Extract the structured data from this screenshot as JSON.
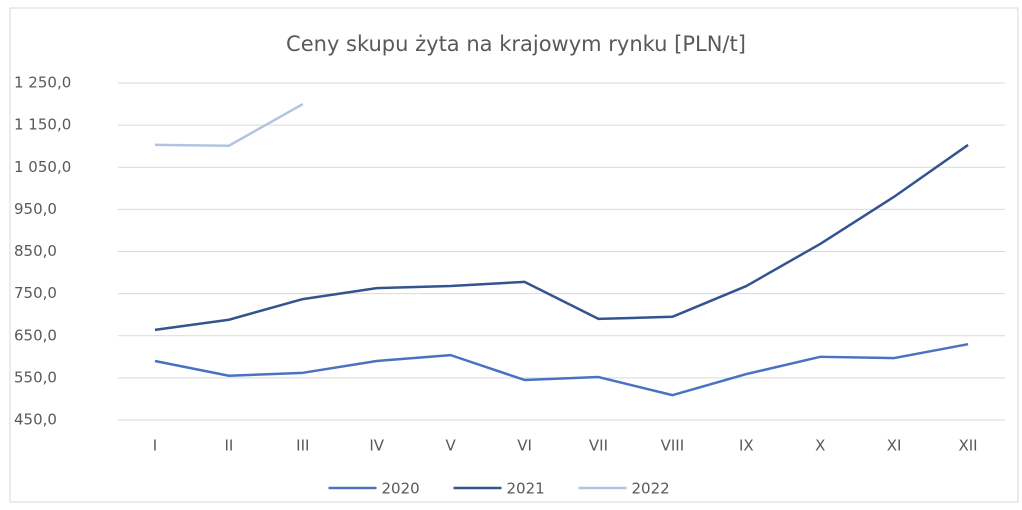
{
  "chart_data": {
    "type": "line",
    "title": "Ceny skupu żyta na krajowym rynku [PLN/t]",
    "categories": [
      "I",
      "II",
      "III",
      "IV",
      "V",
      "VI",
      "VII",
      "VIII",
      "IX",
      "X",
      "XI",
      "XII"
    ],
    "series": [
      {
        "name": "2020",
        "color": "#4a72c0",
        "values": [
          590,
          555,
          562,
          590,
          604,
          545,
          552,
          509,
          559,
          600,
          597,
          630
        ]
      },
      {
        "name": "2021",
        "color": "#34548f",
        "values": [
          664,
          688,
          737,
          763,
          768,
          778,
          690,
          695,
          768,
          868,
          980,
          1103
        ]
      },
      {
        "name": "2022",
        "color": "#b4c4e0",
        "values": [
          1103,
          1101,
          1200,
          null,
          null,
          null,
          null,
          null,
          null,
          null,
          null,
          null
        ]
      }
    ],
    "ylim": [
      450,
      1250
    ],
    "yticks": [
      {
        "value": 450,
        "label": "450,0"
      },
      {
        "value": 550,
        "label": "550,0"
      },
      {
        "value": 650,
        "label": "650,0"
      },
      {
        "value": 750,
        "label": "750,0"
      },
      {
        "value": 850,
        "label": "850,0"
      },
      {
        "value": 950,
        "label": "950,0"
      },
      {
        "value": 1050,
        "label": "1 050,0"
      },
      {
        "value": 1150,
        "label": "1 150,0"
      },
      {
        "value": 1250,
        "label": "1 250,0"
      }
    ],
    "grid": true,
    "legend": "bottom"
  }
}
